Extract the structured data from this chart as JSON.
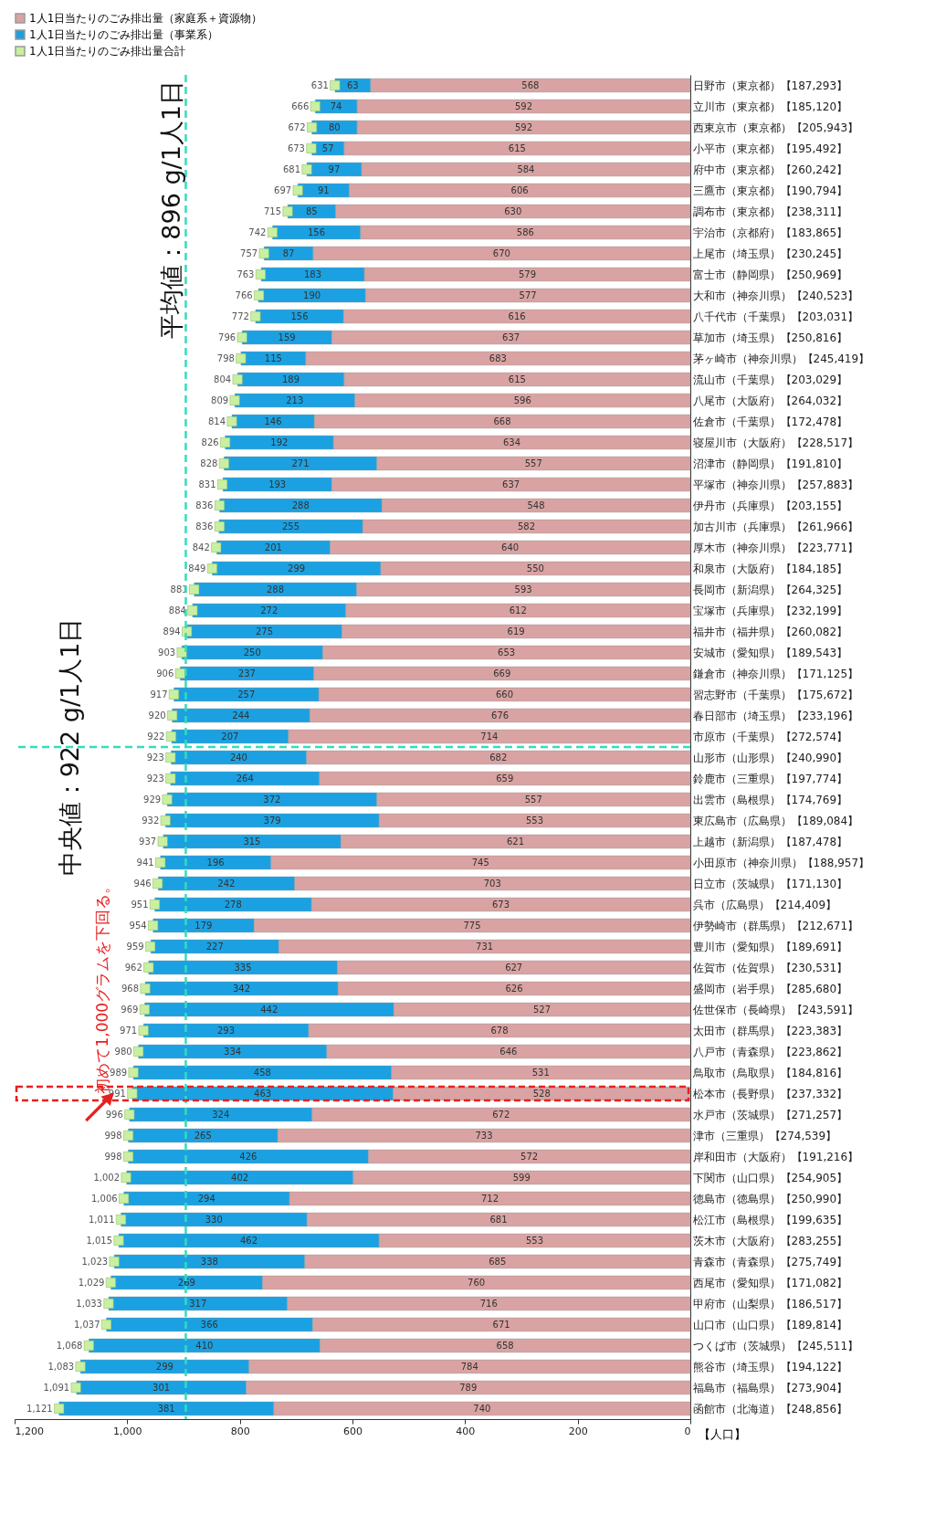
{
  "chart_data": {
    "type": "bar",
    "orientation": "horizontal",
    "stacked": true,
    "data_labels": true,
    "legend": "top left",
    "marker": "square",
    "ylabel": "【人口】",
    "categories": [
      "日野市（東京都）【187,293】",
      "立川市（東京都）【185,120】",
      "西東京市（東京都）【205,943】",
      "小平市（東京都）【195,492】",
      "府中市（東京都）【260,242】",
      "三鷹市（東京都）【190,794】",
      "調布市（東京都）【238,311】",
      "宇治市（京都府）【183,865】",
      "上尾市（埼玉県）【230,245】",
      "富士市（静岡県）【250,969】",
      "大和市（神奈川県）【240,523】",
      "八千代市（千葉県）【203,031】",
      "草加市（埼玉県）【250,816】",
      "茅ヶ崎市（神奈川県）【245,419】",
      "流山市（千葉県）【203,029】",
      "八尾市（大阪府）【264,032】",
      "佐倉市（千葉県）【172,478】",
      "寝屋川市（大阪府）【228,517】",
      "沼津市（静岡県）【191,810】",
      "平塚市（神奈川県）【257,883】",
      "伊丹市（兵庫県）【203,155】",
      "加古川市（兵庫県）【261,966】",
      "厚木市（神奈川県）【223,771】",
      "和泉市（大阪府）【184,185】",
      "長岡市（新潟県）【264,325】",
      "宝塚市（兵庫県）【232,199】",
      "福井市（福井県）【260,082】",
      "安城市（愛知県）【189,543】",
      "鎌倉市（神奈川県）【171,125】",
      "習志野市（千葉県）【175,672】",
      "春日部市（埼玉県）【233,196】",
      "市原市（千葉県）【272,574】",
      "山形市（山形県）【240,990】",
      "鈴鹿市（三重県）【197,774】",
      "出雲市（島根県）【174,769】",
      "東広島市（広島県）【189,084】",
      "上越市（新潟県）【187,478】",
      "小田原市（神奈川県）【188,957】",
      "日立市（茨城県）【171,130】",
      "呉市（広島県）【214,409】",
      "伊勢崎市（群馬県）【212,671】",
      "豊川市（愛知県）【189,691】",
      "佐賀市（佐賀県）【230,531】",
      "盛岡市（岩手県）【285,680】",
      "佐世保市（長崎県）【243,591】",
      "太田市（群馬県）【223,383】",
      "八戸市（青森県）【223,862】",
      "鳥取市（鳥取県）【184,816】",
      "松本市（長野県）【237,332】",
      "水戸市（茨城県）【271,257】",
      "津市（三重県）【274,539】",
      "岸和田市（大阪府）【191,216】",
      "下関市（山口県）【254,905】",
      "徳島市（徳島県）【250,990】",
      "松江市（島根県）【199,635】",
      "茨木市（大阪府）【283,255】",
      "青森市（青森県）【275,749】",
      "西尾市（愛知県）【171,082】",
      "甲府市（山梨県）【186,517】",
      "山口市（山口県）【189,814】",
      "つくば市（茨城県）【245,511】",
      "熊谷市（埼玉県）【194,122】",
      "福島市（福島県）【273,904】",
      "函館市（北海道）【248,856】"
    ],
    "series": [
      {
        "name": "1人1日当たりのごみ排出量（家庭系＋資源物）",
        "color": "#d9a3a3",
        "values": [
          568,
          592,
          592,
          615,
          584,
          606,
          630,
          586,
          670,
          579,
          577,
          616,
          637,
          683,
          615,
          596,
          668,
          634,
          557,
          637,
          548,
          582,
          640,
          550,
          593,
          612,
          619,
          653,
          669,
          660,
          676,
          714,
          682,
          659,
          557,
          553,
          621,
          745,
          703,
          673,
          775,
          731,
          627,
          626,
          527,
          678,
          646,
          531,
          528,
          672,
          733,
          572,
          599,
          712,
          681,
          553,
          685,
          760,
          716,
          671,
          658,
          784,
          789,
          740
        ]
      },
      {
        "name": "1人1日当たりのごみ排出量（事業系）",
        "color": "#1ba1e2",
        "values": [
          63,
          74,
          80,
          57,
          97,
          91,
          85,
          156,
          87,
          183,
          190,
          156,
          159,
          115,
          189,
          213,
          146,
          192,
          271,
          193,
          288,
          255,
          201,
          299,
          288,
          272,
          275,
          250,
          237,
          257,
          244,
          207,
          240,
          264,
          372,
          379,
          315,
          196,
          242,
          278,
          179,
          227,
          335,
          342,
          442,
          293,
          334,
          458,
          463,
          324,
          265,
          426,
          402,
          294,
          330,
          462,
          338,
          269,
          317,
          366,
          410,
          299,
          301,
          381
        ]
      },
      {
        "name": "1人1日当たりのごみ排出量合計",
        "color": "#c8f0a0",
        "type": "scatter",
        "values": [
          631,
          666,
          672,
          673,
          681,
          697,
          715,
          742,
          757,
          763,
          766,
          772,
          796,
          798,
          804,
          809,
          814,
          826,
          828,
          831,
          836,
          836,
          842,
          849,
          881,
          884,
          894,
          903,
          906,
          917,
          920,
          922,
          923,
          923,
          929,
          932,
          937,
          941,
          946,
          951,
          954,
          959,
          962,
          968,
          969,
          971,
          980,
          989,
          991,
          996,
          998,
          998,
          1002,
          1006,
          1011,
          1015,
          1023,
          1029,
          1033,
          1037,
          1068,
          1083,
          1091,
          1121
        ],
        "value_labels": [
          "631",
          "666",
          "672",
          "673",
          "681",
          "697",
          "715",
          "742",
          "757",
          "763",
          "766",
          "772",
          "796",
          "798",
          "804",
          "809",
          "814",
          "826",
          "828",
          "831",
          "836",
          "836",
          "842",
          "849",
          "881",
          "884",
          "894",
          "903",
          "906",
          "917",
          "920",
          "922",
          "923",
          "923",
          "929",
          "932",
          "937",
          "941",
          "946",
          "951",
          "954",
          "959",
          "962",
          "968",
          "969",
          "971",
          "980",
          "989",
          "991",
          "996",
          "998",
          "998",
          "1,002",
          "1,006",
          "1,011",
          "1,015",
          "1,023",
          "1,029",
          "1,033",
          "1,037",
          "1,068",
          "1,083",
          "1,091",
          "1,121"
        ]
      }
    ],
    "xlim": [
      1200,
      0
    ],
    "xticks": [
      0,
      200,
      400,
      600,
      800,
      {
        "value": 1000,
        "label": "1,000"
      },
      {
        "value": 1200,
        "label": "1,200"
      }
    ],
    "ref_lines": [
      {
        "axis": "x",
        "value": 896,
        "label": "平均値：896 g/1人1日",
        "color": "#33ddbb",
        "line_style": "dashed"
      },
      {
        "axis": "y",
        "value": "市原市（千葉県）【272,574】",
        "label": "中央値：922 g/1人1日",
        "color": "#33ddbb",
        "line_style": "dashed"
      }
    ],
    "annotations": [
      {
        "text": "初めて1,000グラムを下回る。",
        "x": 991,
        "y": "松本市（長野県）【237,332】"
      }
    ]
  }
}
